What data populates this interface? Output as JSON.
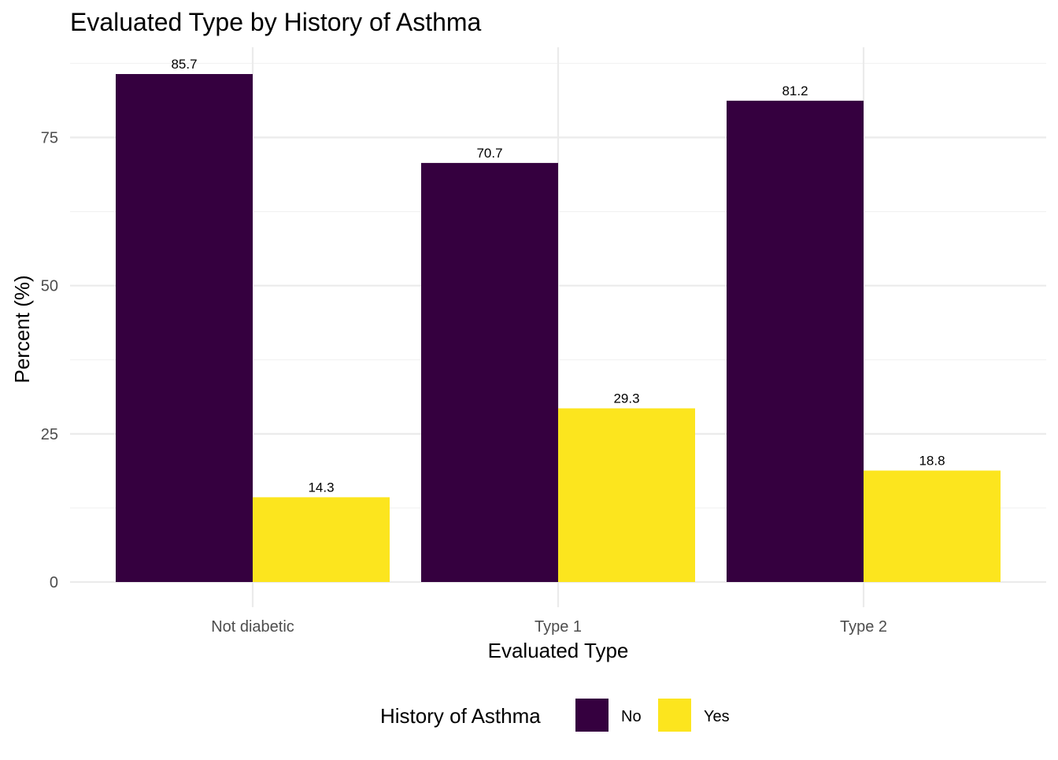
{
  "chart_data": {
    "type": "bar",
    "title": "Evaluated Type by History of Asthma",
    "xlabel": "Evaluated Type",
    "ylabel": "Percent (%)",
    "categories": [
      "Not diabetic",
      "Type 1",
      "Type 2"
    ],
    "series": [
      {
        "name": "No",
        "color": "#35003F",
        "values": [
          85.7,
          70.7,
          81.2
        ],
        "labels": [
          "85.7",
          "70.7",
          "81.2"
        ]
      },
      {
        "name": "Yes",
        "color": "#FCE51E",
        "values": [
          14.3,
          29.3,
          18.8
        ],
        "labels": [
          "14.3",
          "29.3",
          "18.8"
        ]
      }
    ],
    "ylim": [
      0,
      88.4
    ],
    "yticks": [
      0,
      25,
      50,
      75
    ],
    "ytick_labels": [
      "0",
      "25",
      "50",
      "75"
    ],
    "grid": true,
    "legend": {
      "title": "History of Asthma",
      "position": "bottom",
      "items": [
        "No",
        "Yes"
      ]
    }
  }
}
